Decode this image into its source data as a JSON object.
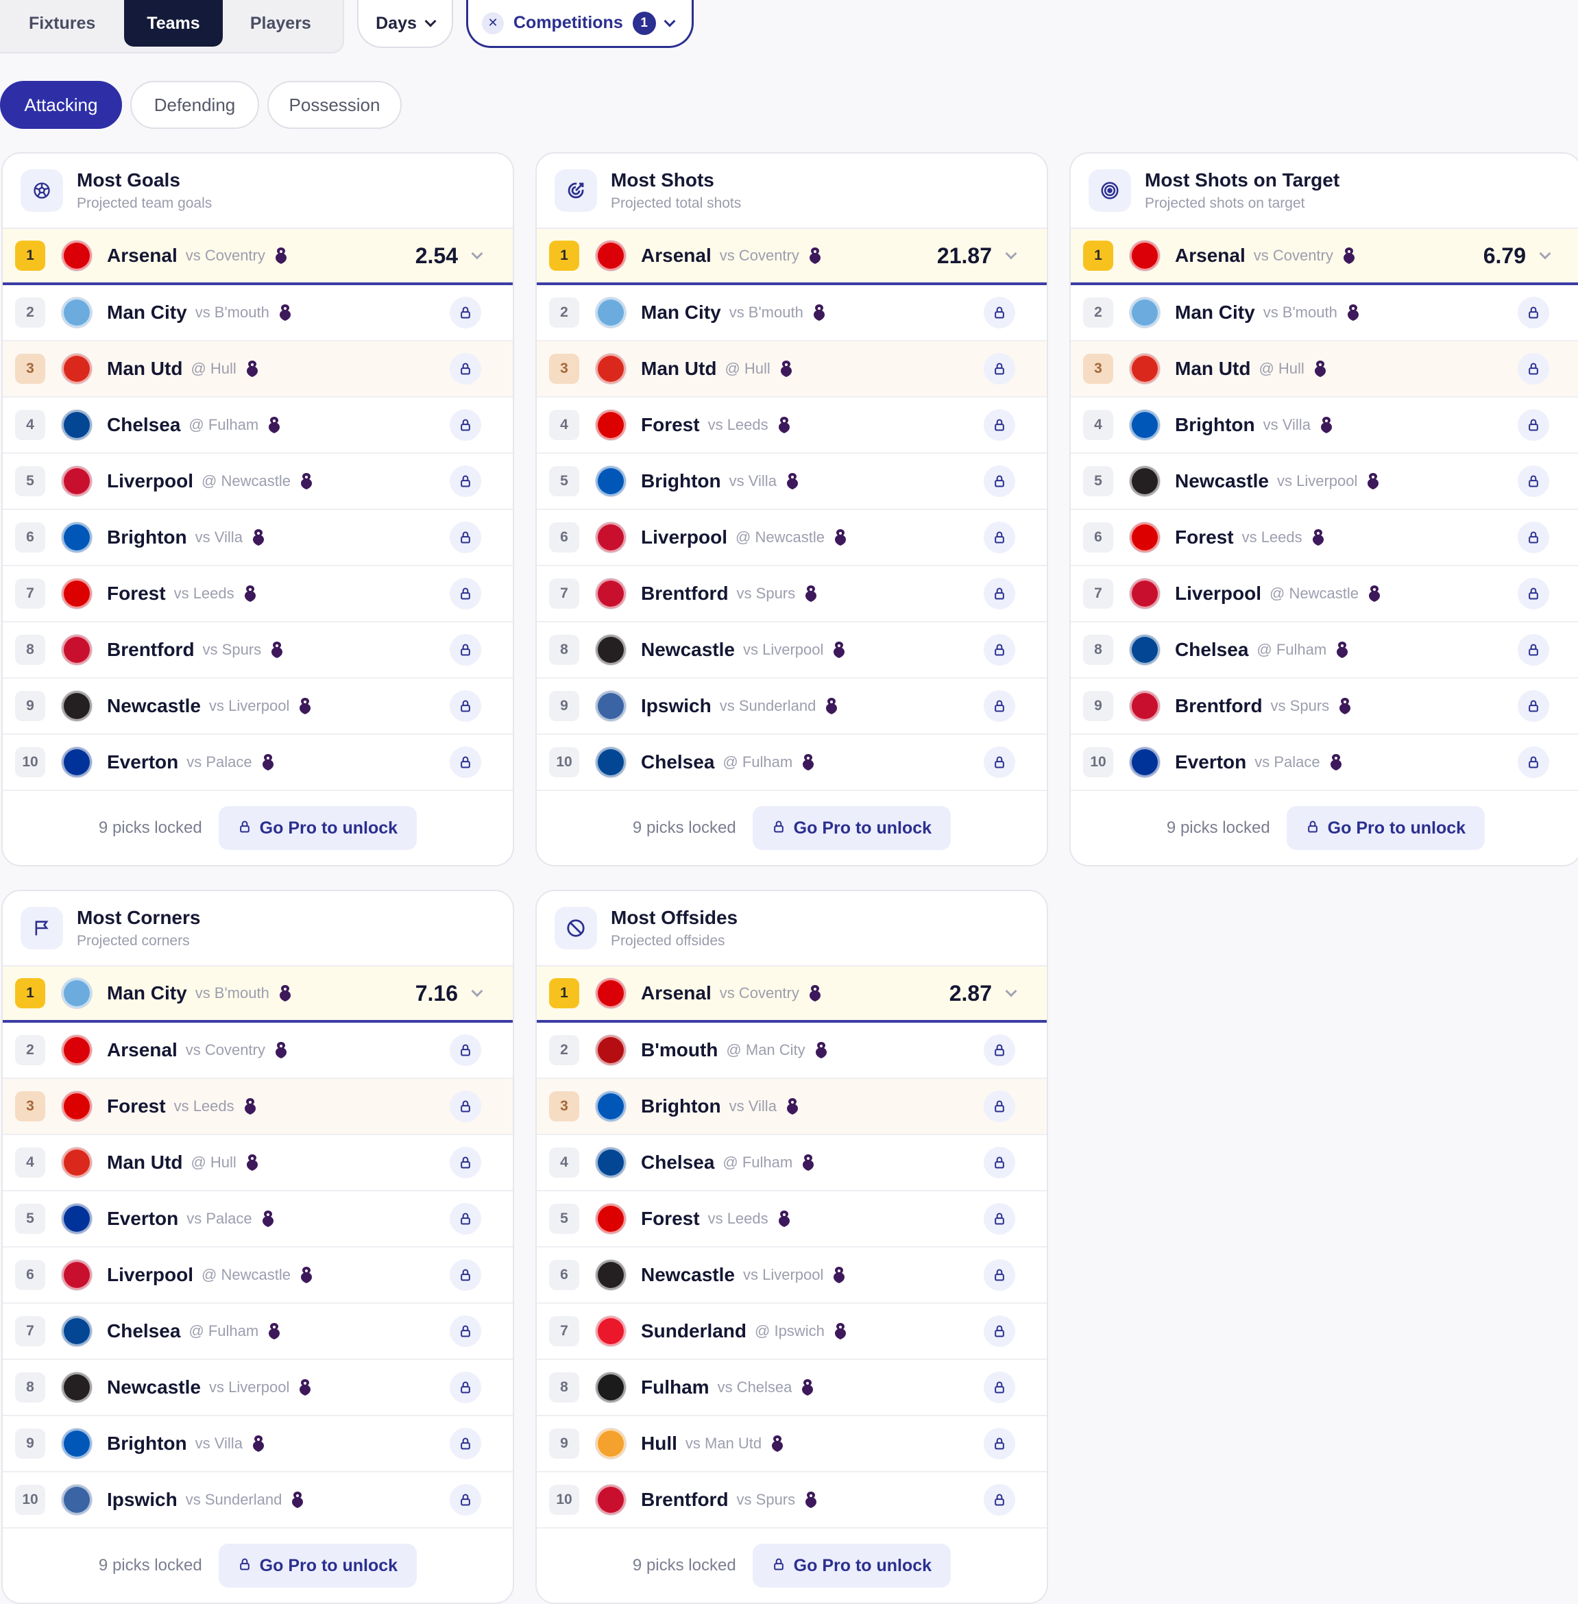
{
  "view_tabs": [
    "Fixtures",
    "Teams",
    "Players"
  ],
  "filters": {
    "days_label": "Days",
    "competitions_label": "Competitions",
    "competitions_count": "1"
  },
  "stat_tabs": [
    "Attacking",
    "Defending",
    "Possession"
  ],
  "colors": {
    "accent": "#2e2fa6",
    "dark": "#141a3a",
    "gold": "#f8c21e",
    "bronze": "#f5dcc3",
    "league": "#3d195b"
  },
  "footer": {
    "locked": "9 picks locked",
    "cta": "Go Pro to unlock"
  },
  "cards": [
    {
      "title": "Most Goals",
      "subtitle": "Projected team goals",
      "icon": "soccer-ball-icon",
      "top_value": "2.54",
      "rows": [
        {
          "rank": "1",
          "team": "Arsenal",
          "opp": "vs Coventry",
          "crest": "#db0007"
        },
        {
          "rank": "2",
          "team": "Man City",
          "opp": "vs B'mouth",
          "crest": "#6cabdd"
        },
        {
          "rank": "3",
          "team": "Man Utd",
          "opp": "@ Hull",
          "crest": "#da291c"
        },
        {
          "rank": "4",
          "team": "Chelsea",
          "opp": "@ Fulham",
          "crest": "#034694"
        },
        {
          "rank": "5",
          "team": "Liverpool",
          "opp": "@ Newcastle",
          "crest": "#c8102e"
        },
        {
          "rank": "6",
          "team": "Brighton",
          "opp": "vs Villa",
          "crest": "#0057b8"
        },
        {
          "rank": "7",
          "team": "Forest",
          "opp": "vs Leeds",
          "crest": "#dd0000"
        },
        {
          "rank": "8",
          "team": "Brentford",
          "opp": "vs Spurs",
          "crest": "#c8102e"
        },
        {
          "rank": "9",
          "team": "Newcastle",
          "opp": "vs Liverpool",
          "crest": "#241f20"
        },
        {
          "rank": "10",
          "team": "Everton",
          "opp": "vs Palace",
          "crest": "#003399"
        }
      ]
    },
    {
      "title": "Most Shots",
      "subtitle": "Projected total shots",
      "icon": "target-arrow-icon",
      "top_value": "21.87",
      "rows": [
        {
          "rank": "1",
          "team": "Arsenal",
          "opp": "vs Coventry",
          "crest": "#db0007"
        },
        {
          "rank": "2",
          "team": "Man City",
          "opp": "vs B'mouth",
          "crest": "#6cabdd"
        },
        {
          "rank": "3",
          "team": "Man Utd",
          "opp": "@ Hull",
          "crest": "#da291c"
        },
        {
          "rank": "4",
          "team": "Forest",
          "opp": "vs Leeds",
          "crest": "#dd0000"
        },
        {
          "rank": "5",
          "team": "Brighton",
          "opp": "vs Villa",
          "crest": "#0057b8"
        },
        {
          "rank": "6",
          "team": "Liverpool",
          "opp": "@ Newcastle",
          "crest": "#c8102e"
        },
        {
          "rank": "7",
          "team": "Brentford",
          "opp": "vs Spurs",
          "crest": "#c8102e"
        },
        {
          "rank": "8",
          "team": "Newcastle",
          "opp": "vs Liverpool",
          "crest": "#241f20"
        },
        {
          "rank": "9",
          "team": "Ipswich",
          "opp": "vs Sunderland",
          "crest": "#3a64a3"
        },
        {
          "rank": "10",
          "team": "Chelsea",
          "opp": "@ Fulham",
          "crest": "#034694"
        }
      ]
    },
    {
      "title": "Most Shots on Target",
      "subtitle": "Projected shots on target",
      "icon": "bullseye-icon",
      "top_value": "6.79",
      "rows": [
        {
          "rank": "1",
          "team": "Arsenal",
          "opp": "vs Coventry",
          "crest": "#db0007"
        },
        {
          "rank": "2",
          "team": "Man City",
          "opp": "vs B'mouth",
          "crest": "#6cabdd"
        },
        {
          "rank": "3",
          "team": "Man Utd",
          "opp": "@ Hull",
          "crest": "#da291c"
        },
        {
          "rank": "4",
          "team": "Brighton",
          "opp": "vs Villa",
          "crest": "#0057b8"
        },
        {
          "rank": "5",
          "team": "Newcastle",
          "opp": "vs Liverpool",
          "crest": "#241f20"
        },
        {
          "rank": "6",
          "team": "Forest",
          "opp": "vs Leeds",
          "crest": "#dd0000"
        },
        {
          "rank": "7",
          "team": "Liverpool",
          "opp": "@ Newcastle",
          "crest": "#c8102e"
        },
        {
          "rank": "8",
          "team": "Chelsea",
          "opp": "@ Fulham",
          "crest": "#034694"
        },
        {
          "rank": "9",
          "team": "Brentford",
          "opp": "vs Spurs",
          "crest": "#c8102e"
        },
        {
          "rank": "10",
          "team": "Everton",
          "opp": "vs Palace",
          "crest": "#003399"
        }
      ]
    },
    {
      "title": "Most Corners",
      "subtitle": "Projected corners",
      "icon": "corner-flag-icon",
      "top_value": "7.16",
      "rows": [
        {
          "rank": "1",
          "team": "Man City",
          "opp": "vs B'mouth",
          "crest": "#6cabdd"
        },
        {
          "rank": "2",
          "team": "Arsenal",
          "opp": "vs Coventry",
          "crest": "#db0007"
        },
        {
          "rank": "3",
          "team": "Forest",
          "opp": "vs Leeds",
          "crest": "#dd0000"
        },
        {
          "rank": "4",
          "team": "Man Utd",
          "opp": "@ Hull",
          "crest": "#da291c"
        },
        {
          "rank": "5",
          "team": "Everton",
          "opp": "vs Palace",
          "crest": "#003399"
        },
        {
          "rank": "6",
          "team": "Liverpool",
          "opp": "@ Newcastle",
          "crest": "#c8102e"
        },
        {
          "rank": "7",
          "team": "Chelsea",
          "opp": "@ Fulham",
          "crest": "#034694"
        },
        {
          "rank": "8",
          "team": "Newcastle",
          "opp": "vs Liverpool",
          "crest": "#241f20"
        },
        {
          "rank": "9",
          "team": "Brighton",
          "opp": "vs Villa",
          "crest": "#0057b8"
        },
        {
          "rank": "10",
          "team": "Ipswich",
          "opp": "vs Sunderland",
          "crest": "#3a64a3"
        }
      ]
    },
    {
      "title": "Most Offsides",
      "subtitle": "Projected offsides",
      "icon": "no-entry-icon",
      "top_value": "2.87",
      "rows": [
        {
          "rank": "1",
          "team": "Arsenal",
          "opp": "vs Coventry",
          "crest": "#db0007"
        },
        {
          "rank": "2",
          "team": "B'mouth",
          "opp": "@ Man City",
          "crest": "#b50e12"
        },
        {
          "rank": "3",
          "team": "Brighton",
          "opp": "vs Villa",
          "crest": "#0057b8"
        },
        {
          "rank": "4",
          "team": "Chelsea",
          "opp": "@ Fulham",
          "crest": "#034694"
        },
        {
          "rank": "5",
          "team": "Forest",
          "opp": "vs Leeds",
          "crest": "#dd0000"
        },
        {
          "rank": "6",
          "team": "Newcastle",
          "opp": "vs Liverpool",
          "crest": "#241f20"
        },
        {
          "rank": "7",
          "team": "Sunderland",
          "opp": "@ Ipswich",
          "crest": "#eb172b"
        },
        {
          "rank": "8",
          "team": "Fulham",
          "opp": "vs Chelsea",
          "crest": "#1b1b1b"
        },
        {
          "rank": "9",
          "team": "Hull",
          "opp": "vs Man Utd",
          "crest": "#f5a12d"
        },
        {
          "rank": "10",
          "team": "Brentford",
          "opp": "vs Spurs",
          "crest": "#c8102e"
        }
      ]
    }
  ]
}
